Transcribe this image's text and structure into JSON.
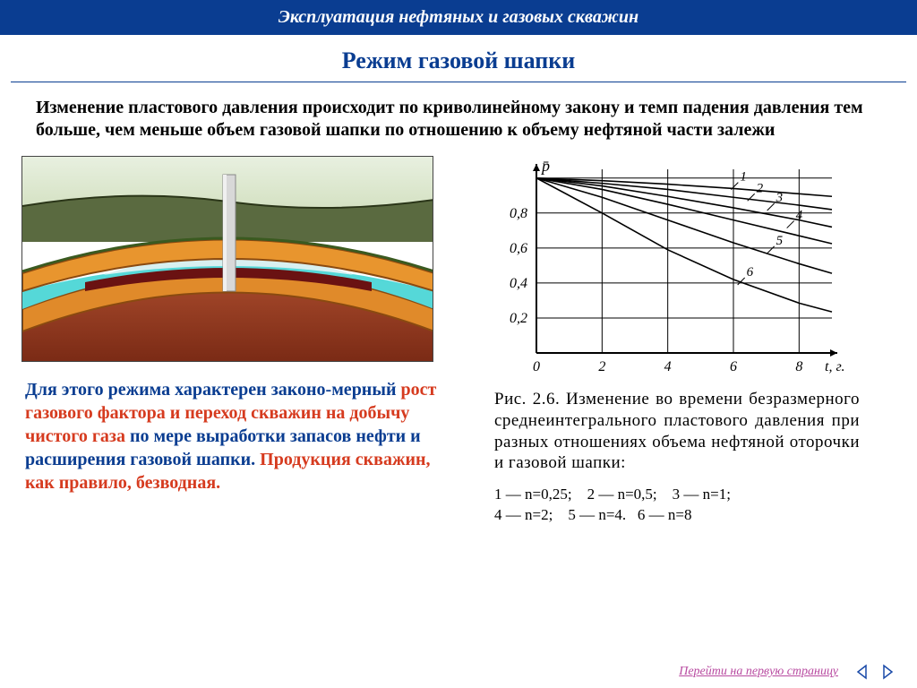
{
  "header": {
    "title": "Эксплуатация нефтяных и газовых скважин"
  },
  "page_title": "Режим газовой шапки",
  "intro_text": "Изменение пластового давления происходит по криволинейному закону и темп падения давления тем больше, чем меньше объем газовой шапки по отношению к объему нефтяной части залежи",
  "diagram": {
    "type": "cross-section",
    "layers": [
      {
        "name": "sky",
        "color_top": "#e8f0e0",
        "color_bot": "#c8d8b0"
      },
      {
        "name": "topsoil",
        "color": "#6a7a4a"
      },
      {
        "name": "caprock",
        "color": "#e08a2a"
      },
      {
        "name": "gas",
        "color": "#d8f0f0"
      },
      {
        "name": "oil",
        "color": "#7a1a1a"
      },
      {
        "name": "water_top",
        "color": "#60e0e0"
      },
      {
        "name": "reservoir",
        "color": "#8a3a20"
      },
      {
        "name": "well_pipe",
        "color": "#d0d0d0"
      }
    ]
  },
  "paragraph2": {
    "pre": "Для этого режима характерен законо-мерный ",
    "hl1": "рост газового фактора и переход скважин на добычу чистого газа",
    "mid": " по мере выработки запасов нефти и расширения газовой шапки. ",
    "hl2": "Продукция скважин, как правило, безводная."
  },
  "chart": {
    "type": "line",
    "x_label": "t, г.",
    "y_label": "p̄",
    "xlim": [
      0,
      9
    ],
    "ylim": [
      0,
      1.05
    ],
    "xticks": [
      0,
      2,
      4,
      6,
      8
    ],
    "yticks": [
      0.2,
      0.4,
      0.6,
      0.8
    ],
    "axis_color": "#000000",
    "grid_color": "#000000",
    "line_color": "#000000",
    "line_width": 1.6,
    "series": [
      {
        "id": "1",
        "pts": [
          [
            0,
            1.0
          ],
          [
            2,
            0.985
          ],
          [
            4,
            0.965
          ],
          [
            6,
            0.94
          ],
          [
            8,
            0.91
          ],
          [
            9,
            0.895
          ]
        ]
      },
      {
        "id": "2",
        "pts": [
          [
            0,
            1.0
          ],
          [
            2,
            0.97
          ],
          [
            4,
            0.935
          ],
          [
            6,
            0.89
          ],
          [
            8,
            0.845
          ],
          [
            9,
            0.82
          ]
        ]
      },
      {
        "id": "3",
        "pts": [
          [
            0,
            1.0
          ],
          [
            2,
            0.955
          ],
          [
            4,
            0.895
          ],
          [
            6,
            0.83
          ],
          [
            8,
            0.76
          ],
          [
            9,
            0.72
          ]
        ]
      },
      {
        "id": "4",
        "pts": [
          [
            0,
            1.0
          ],
          [
            2,
            0.935
          ],
          [
            4,
            0.85
          ],
          [
            6,
            0.76
          ],
          [
            8,
            0.67
          ],
          [
            9,
            0.625
          ]
        ]
      },
      {
        "id": "5",
        "pts": [
          [
            0,
            1.0
          ],
          [
            2,
            0.89
          ],
          [
            4,
            0.76
          ],
          [
            6,
            0.63
          ],
          [
            8,
            0.51
          ],
          [
            9,
            0.455
          ]
        ]
      },
      {
        "id": "6",
        "pts": [
          [
            0,
            1.0
          ],
          [
            2,
            0.8
          ],
          [
            4,
            0.59
          ],
          [
            6,
            0.42
          ],
          [
            8,
            0.285
          ],
          [
            9,
            0.235
          ]
        ]
      }
    ],
    "series_labels": [
      {
        "id": "1",
        "x": 6.2,
        "y": 0.965
      },
      {
        "id": "2",
        "x": 6.7,
        "y": 0.9
      },
      {
        "id": "3",
        "x": 7.3,
        "y": 0.845
      },
      {
        "id": "4",
        "x": 7.9,
        "y": 0.745
      },
      {
        "id": "5",
        "x": 7.3,
        "y": 0.6
      },
      {
        "id": "6",
        "x": 6.4,
        "y": 0.42
      }
    ]
  },
  "caption": "Рис. 2.6. Изменение во времени безразмерного среднеинтегрального пластового давления при разных отношениях объема нефтяной оторочки и газовой шапки:",
  "legend_items": [
    "1 — n=0,25;",
    "2 — n=0,5;",
    "3 — n=1;",
    "4 — n=2;",
    "5 — n=4.",
    "6 — n=8"
  ],
  "footer": {
    "link_text": "Перейти на первую страницу",
    "arrow_color": "#1a4aa8"
  }
}
